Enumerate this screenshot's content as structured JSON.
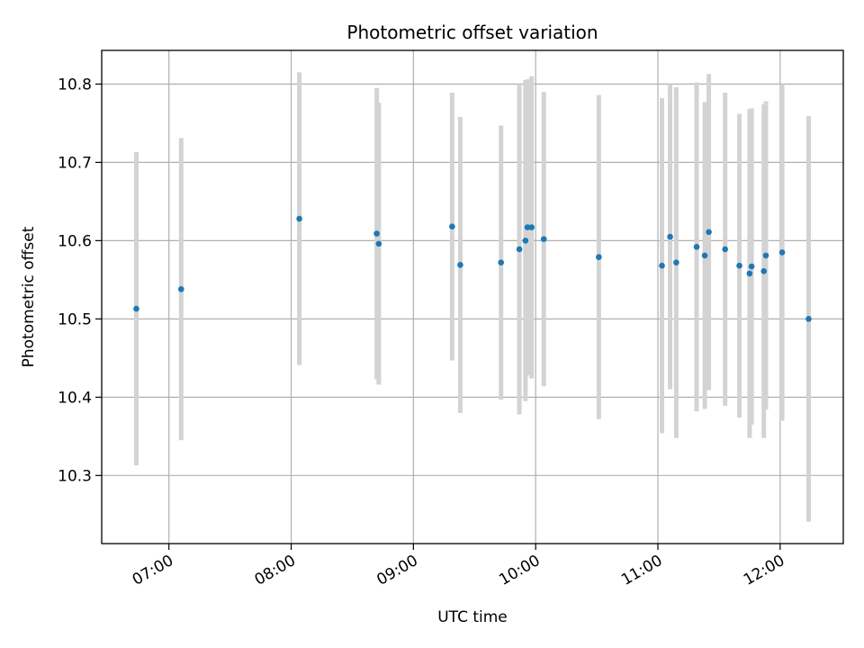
{
  "chart_data": {
    "type": "scatter",
    "title": "Photometric offset variation",
    "xlabel": "UTC time",
    "ylabel": "Photometric offset",
    "x_ticks": [
      "07:00",
      "08:00",
      "09:00",
      "10:00",
      "11:00",
      "12:00"
    ],
    "y_ticks": [
      "10.3",
      "10.4",
      "10.5",
      "10.6",
      "10.7",
      "10.8"
    ],
    "xlim": [
      "06:27",
      "12:31"
    ],
    "ylim": [
      10.213,
      10.843
    ],
    "grid": true,
    "colors": {
      "points": "#1f77b4",
      "errorbars": "#d3d3d3"
    },
    "series": [
      {
        "points": [
          {
            "x": "06:44",
            "y": 10.513,
            "err": 0.2
          },
          {
            "x": "07:06",
            "y": 10.538,
            "err": 0.193
          },
          {
            "x": "08:04",
            "y": 10.628,
            "err": 0.187
          },
          {
            "x": "08:42",
            "y": 10.609,
            "err": 0.186
          },
          {
            "x": "08:43",
            "y": 10.596,
            "err": 0.18
          },
          {
            "x": "09:19",
            "y": 10.618,
            "err": 0.171
          },
          {
            "x": "09:23",
            "y": 10.569,
            "err": 0.189
          },
          {
            "x": "09:43",
            "y": 10.572,
            "err": 0.175
          },
          {
            "x": "09:52",
            "y": 10.589,
            "err": 0.211
          },
          {
            "x": "09:55",
            "y": 10.6,
            "err": 0.205
          },
          {
            "x": "09:56",
            "y": 10.617,
            "err": 0.189
          },
          {
            "x": "09:58",
            "y": 10.617,
            "err": 0.193
          },
          {
            "x": "10:04",
            "y": 10.602,
            "err": 0.188
          },
          {
            "x": "10:31",
            "y": 10.579,
            "err": 0.207
          },
          {
            "x": "11:02",
            "y": 10.568,
            "err": 0.214
          },
          {
            "x": "11:06",
            "y": 10.605,
            "err": 0.195
          },
          {
            "x": "11:09",
            "y": 10.572,
            "err": 0.224
          },
          {
            "x": "11:19",
            "y": 10.592,
            "err": 0.21
          },
          {
            "x": "11:23",
            "y": 10.581,
            "err": 0.196
          },
          {
            "x": "11:25",
            "y": 10.611,
            "err": 0.202
          },
          {
            "x": "11:33",
            "y": 10.589,
            "err": 0.2
          },
          {
            "x": "11:40",
            "y": 10.568,
            "err": 0.194
          },
          {
            "x": "11:45",
            "y": 10.558,
            "err": 0.21
          },
          {
            "x": "11:46",
            "y": 10.567,
            "err": 0.202
          },
          {
            "x": "11:52",
            "y": 10.561,
            "err": 0.213
          },
          {
            "x": "11:53",
            "y": 10.581,
            "err": 0.197
          },
          {
            "x": "12:01",
            "y": 10.585,
            "err": 0.215
          },
          {
            "x": "12:14",
            "y": 10.5,
            "err": 0.259
          }
        ]
      }
    ]
  }
}
